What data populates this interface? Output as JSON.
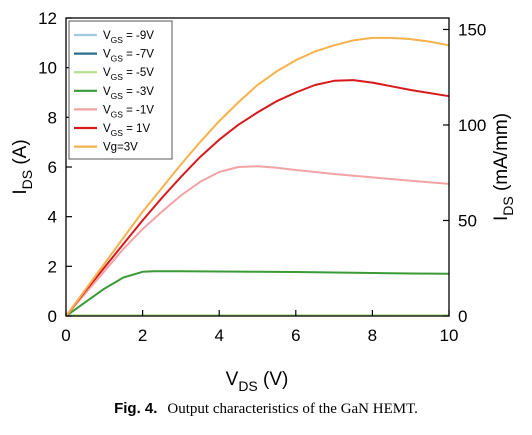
{
  "chart_data": {
    "type": "line",
    "xlabel": {
      "main": "V",
      "sub": "DS",
      "unit": " (V)"
    },
    "ylabel": {
      "main": "I",
      "sub": "DS",
      "unit": " (A)"
    },
    "ylabel_right": {
      "main": "I",
      "sub": "DS",
      "unit": " (mA/mm)"
    },
    "xlim": [
      0,
      10
    ],
    "ylim": [
      0,
      12
    ],
    "ylim_right": [
      0,
      156
    ],
    "xticks": [
      "0",
      "2",
      "4",
      "6",
      "8",
      "10"
    ],
    "yticks": [
      "0",
      "2",
      "4",
      "6",
      "8",
      "10",
      "12"
    ],
    "yticks_right": [
      "0",
      "50",
      "100",
      "150"
    ],
    "grid": false,
    "legend_position": "top-left",
    "series": [
      {
        "name": "V_GS = -9V",
        "label_main": "V",
        "label_sub": "GS",
        "label_rest": " = -9V",
        "color": "#9ecae1",
        "x": [
          0,
          10
        ],
        "y": [
          0.02,
          0.02
        ]
      },
      {
        "name": "V_GS = -7V",
        "label_main": "V",
        "label_sub": "GS",
        "label_rest": " = -7V",
        "color": "#2a6f8e",
        "x": [
          0,
          10
        ],
        "y": [
          0.02,
          0.02
        ]
      },
      {
        "name": "V_GS = -5V",
        "label_main": "V",
        "label_sub": "GS",
        "label_rest": " = -5V",
        "color": "#b5dd8c",
        "x": [
          0,
          10
        ],
        "y": [
          0.03,
          0.03
        ]
      },
      {
        "name": "V_GS = -3V",
        "label_main": "V",
        "label_sub": "GS",
        "label_rest": " = -3V",
        "color": "#3a9a35",
        "x": [
          0,
          0.5,
          1,
          1.5,
          2,
          2.3,
          3,
          4,
          5,
          6,
          7,
          8,
          9,
          10
        ],
        "y": [
          0,
          0.55,
          1.1,
          1.55,
          1.78,
          1.8,
          1.8,
          1.79,
          1.78,
          1.77,
          1.75,
          1.73,
          1.71,
          1.7
        ]
      },
      {
        "name": "V_GS = -1V",
        "label_main": "V",
        "label_sub": "GS",
        "label_rest": " = -1V",
        "color": "#f4a3a5",
        "x": [
          0,
          0.5,
          1,
          1.5,
          2,
          2.5,
          3,
          3.5,
          4,
          4.5,
          5,
          5.5,
          6,
          7,
          8,
          9,
          10
        ],
        "y": [
          0,
          0.9,
          1.8,
          2.7,
          3.5,
          4.2,
          4.85,
          5.4,
          5.8,
          6.0,
          6.03,
          5.97,
          5.88,
          5.72,
          5.58,
          5.45,
          5.32
        ]
      },
      {
        "name": "V_GS = 1V",
        "label_main": "V",
        "label_sub": "GS",
        "label_rest": " = 1V",
        "color": "#d7191c",
        "x": [
          0,
          0.5,
          1,
          1.5,
          2,
          2.5,
          3,
          3.5,
          4,
          4.5,
          5,
          5.5,
          6,
          6.5,
          7,
          7.5,
          8,
          8.5,
          9,
          10
        ],
        "y": [
          0,
          1.0,
          1.95,
          2.9,
          3.85,
          4.75,
          5.6,
          6.4,
          7.1,
          7.7,
          8.2,
          8.65,
          9.0,
          9.3,
          9.47,
          9.5,
          9.4,
          9.25,
          9.1,
          8.85
        ]
      },
      {
        "name": "Vg=3V",
        "label_main": "Vg=3V",
        "label_sub": "",
        "label_rest": "",
        "color": "#f6b24c",
        "x": [
          0,
          0.5,
          1,
          1.5,
          2,
          2.5,
          3,
          3.5,
          4,
          4.5,
          5,
          5.5,
          6,
          6.5,
          7,
          7.5,
          8,
          8.5,
          9,
          9.5,
          10
        ],
        "y": [
          0,
          1.05,
          2.1,
          3.15,
          4.2,
          5.15,
          6.1,
          7.0,
          7.85,
          8.6,
          9.3,
          9.85,
          10.3,
          10.65,
          10.9,
          11.1,
          11.2,
          11.2,
          11.15,
          11.05,
          10.9
        ]
      }
    ]
  },
  "caption": {
    "label": "Fig. 4.",
    "text": "Output characteristics of the GaN HEMT."
  }
}
